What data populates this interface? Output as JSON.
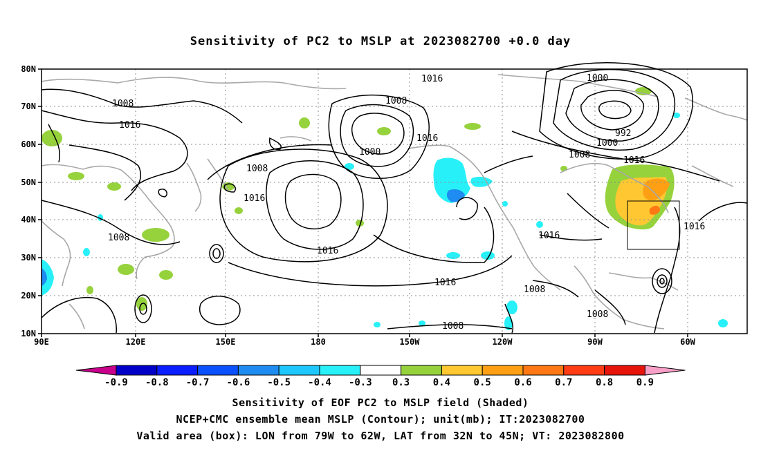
{
  "title": "Sensitivity of PC2 to MSLP at 2023082700 +0.0 day",
  "map": {
    "lat_labels": [
      "80N",
      "70N",
      "60N",
      "50N",
      "40N",
      "30N",
      "20N",
      "10N"
    ],
    "lon_labels": [
      "90E",
      "120E",
      "150E",
      "180",
      "150W",
      "120W",
      "90W",
      "60W"
    ],
    "contour_labels": [
      {
        "text": "1016",
        "key": "a"
      },
      {
        "text": "1000",
        "key": "b"
      },
      {
        "text": "1008",
        "key": "c"
      },
      {
        "text": "1016",
        "key": "d"
      },
      {
        "text": "1008",
        "key": "e"
      },
      {
        "text": "1000",
        "key": "f"
      },
      {
        "text": "1016",
        "key": "g"
      },
      {
        "text": "992",
        "key": "h"
      },
      {
        "text": "1000",
        "key": "i"
      },
      {
        "text": "1008",
        "key": "j"
      },
      {
        "text": "1016",
        "key": "k"
      },
      {
        "text": "1008",
        "key": "l"
      },
      {
        "text": "1016",
        "key": "m"
      },
      {
        "text": "1008",
        "key": "n"
      },
      {
        "text": "1016",
        "key": "o"
      },
      {
        "text": "1016",
        "key": "p"
      },
      {
        "text": "1016",
        "key": "q"
      },
      {
        "text": "1016",
        "key": "r"
      },
      {
        "text": "1008",
        "key": "s"
      },
      {
        "text": "1008",
        "key": "t"
      },
      {
        "text": "1008",
        "key": "u"
      }
    ],
    "valid_box": {
      "lon_from": "79W",
      "lon_to": "62W",
      "lat_from": "32N",
      "lat_to": "45N"
    }
  },
  "colorbar": {
    "ticks": [
      "-0.9",
      "-0.8",
      "-0.7",
      "-0.6",
      "-0.5",
      "-0.4",
      "-0.3",
      "0.3",
      "0.4",
      "0.5",
      "0.6",
      "0.7",
      "0.8",
      "0.9"
    ],
    "colors": [
      "#0000c8",
      "#0a1eff",
      "#0a50ff",
      "#1e8cf0",
      "#1ec8ff",
      "#28f0f8",
      "#ffffff",
      "#96d23c",
      "#ffc832",
      "#ffa014",
      "#ff7814",
      "#ff3c14",
      "#e6140a"
    ],
    "low_arrow": "#c8008c",
    "high_arrow": "#f8a0c8"
  },
  "captions": {
    "line1": "Sensitivity of EOF PC2 to MSLP field (Shaded)",
    "line2": "NCEP+CMC ensemble mean MSLP (Contour); unit(mb); IT:2023082700",
    "line3": "Valid area (box): LON from 79W to 62W, LAT from 32N to 45N; VT: 2023082800"
  }
}
